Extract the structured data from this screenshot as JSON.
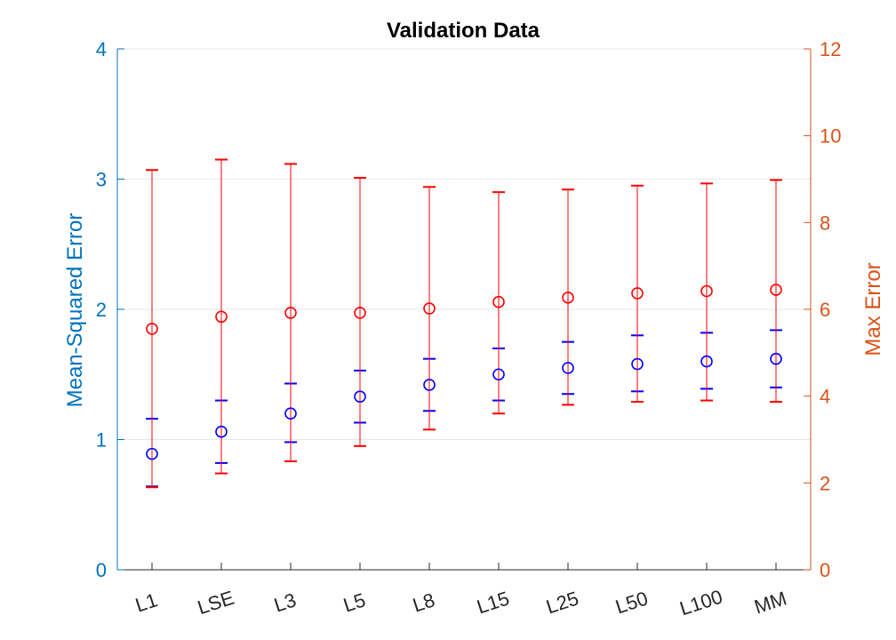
{
  "chart_data": {
    "type": "scatter",
    "title": "Validation Data",
    "xlabel": "",
    "categories": [
      "L1",
      "LSE",
      "L3",
      "L5",
      "L8",
      "L15",
      "L25",
      "L50",
      "L100",
      "MM"
    ],
    "y_left": {
      "label": "Mean-Squared Error",
      "lim": [
        0,
        4
      ],
      "ticks": [
        "0",
        "1",
        "2",
        "3",
        "4"
      ],
      "color": "#0072BD"
    },
    "y_right": {
      "label": "Max Error",
      "lim": [
        0,
        12
      ],
      "ticks": [
        "0",
        "2",
        "4",
        "6",
        "8",
        "10",
        "12"
      ],
      "color": "#D95319"
    },
    "grid": "horizontal",
    "series": [
      {
        "axis": "left",
        "marker": "circle",
        "color": "#0000FF",
        "values": [
          0.89,
          1.06,
          1.2,
          1.33,
          1.42,
          1.5,
          1.55,
          1.58,
          1.6,
          1.62
        ],
        "upper": [
          1.16,
          1.3,
          1.43,
          1.53,
          1.62,
          1.7,
          1.75,
          1.8,
          1.82,
          1.84
        ],
        "lower": [
          0.64,
          0.82,
          0.98,
          1.13,
          1.22,
          1.3,
          1.35,
          1.37,
          1.39,
          1.4
        ]
      },
      {
        "axis": "right",
        "marker": "circle",
        "color": "#FF0000",
        "values": [
          5.55,
          5.83,
          5.92,
          5.92,
          6.02,
          6.17,
          6.27,
          6.37,
          6.42,
          6.45
        ],
        "upper": [
          9.21,
          9.45,
          9.35,
          9.03,
          8.82,
          8.7,
          8.76,
          8.85,
          8.9,
          8.98
        ],
        "lower": [
          1.9,
          2.22,
          2.5,
          2.85,
          3.23,
          3.6,
          3.8,
          3.87,
          3.9,
          3.87
        ]
      }
    ]
  }
}
